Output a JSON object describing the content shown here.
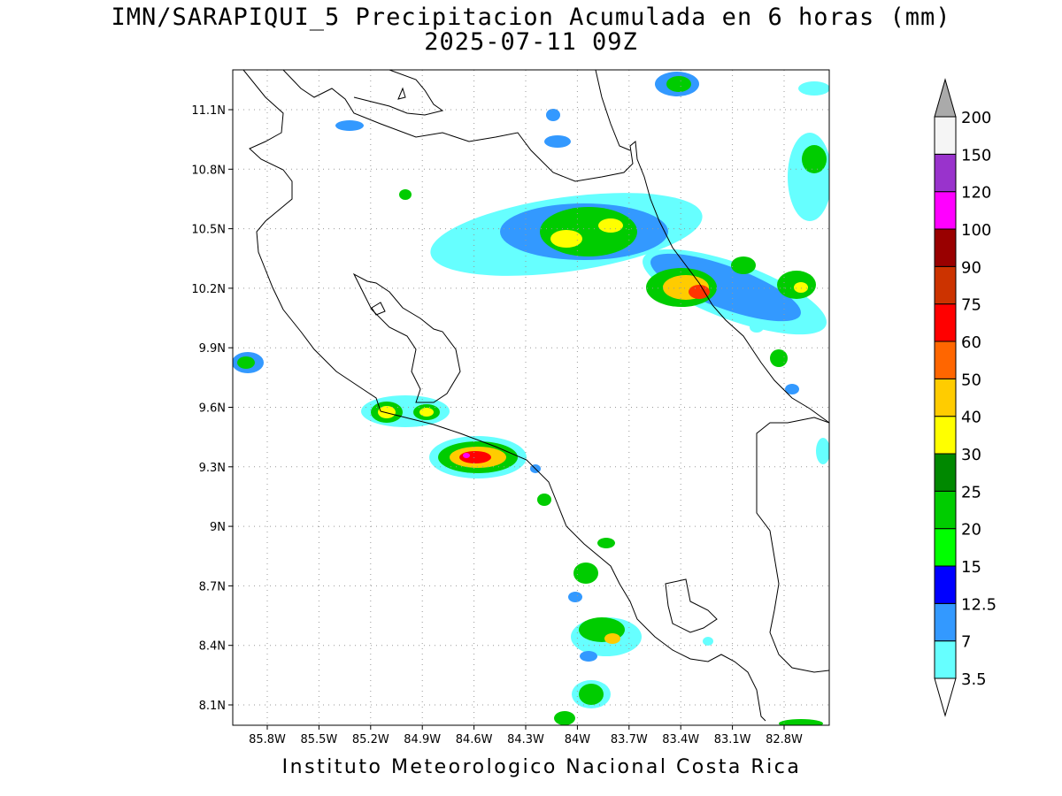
{
  "title": {
    "line1": "IMN/SARAPIQUI_5 Precipitacion Acumulada en 6 horas (mm)",
    "line2": "2025-07-11 09Z"
  },
  "footer": "Instituto Meteorologico Nacional Costa Rica",
  "map": {
    "lat_labels": [
      "11.1N",
      "10.8N",
      "10.5N",
      "10.2N",
      "9.9N",
      "9.6N",
      "9.3N",
      "9N",
      "8.7N",
      "8.4N",
      "8.1N"
    ],
    "lon_labels": [
      "85.8W",
      "85.5W",
      "85.2W",
      "84.9W",
      "84.6W",
      "84.3W",
      "84W",
      "83.7W",
      "83.4W",
      "83.1W",
      "82.8W"
    ],
    "grid": "dotted",
    "coastline_color": "#000000"
  },
  "colorbar": {
    "labels": [
      "3.5",
      "7",
      "12.5",
      "15",
      "20",
      "25",
      "30",
      "40",
      "50",
      "60",
      "75",
      "90",
      "100",
      "120",
      "150",
      "200"
    ],
    "colors": [
      "#66ffff",
      "#3399ff",
      "#0000ff",
      "#00ff00",
      "#00cc00",
      "#008800",
      "#ffff00",
      "#ffcc00",
      "#ff6600",
      "#ff0000",
      "#cc3300",
      "#990000",
      "#ff00ff",
      "#9933cc",
      "#f5f5f5",
      "#aaaaaa"
    ]
  }
}
